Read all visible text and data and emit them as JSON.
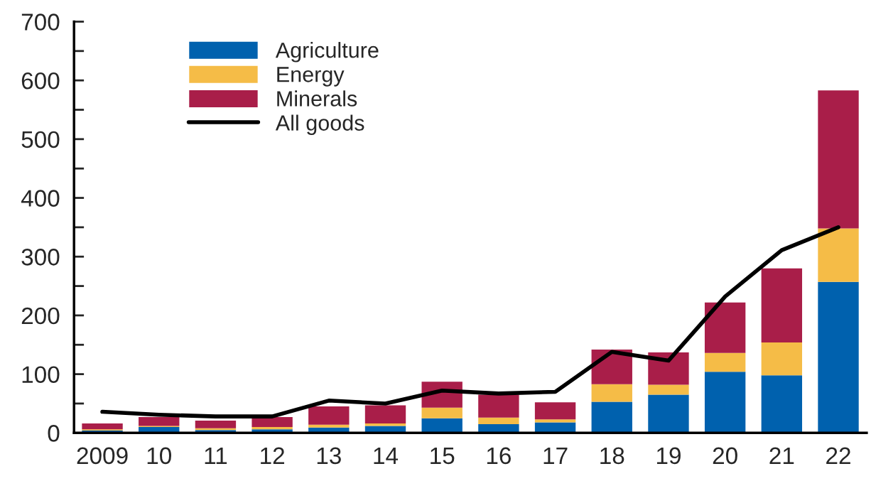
{
  "chart_data": {
    "type": "bar",
    "stacked": true,
    "categories": [
      "2009",
      "10",
      "11",
      "12",
      "13",
      "14",
      "15",
      "16",
      "17",
      "18",
      "19",
      "20",
      "21",
      "22"
    ],
    "series": [
      {
        "name": "Agriculture",
        "color": "#0061ae",
        "values": [
          4,
          10,
          5,
          6,
          9,
          12,
          25,
          15,
          18,
          53,
          65,
          104,
          98,
          257
        ]
      },
      {
        "name": "Energy",
        "color": "#f5bc47",
        "values": [
          2,
          2,
          3,
          4,
          5,
          4,
          18,
          11,
          5,
          30,
          17,
          32,
          56,
          91
        ]
      },
      {
        "name": "Minerals",
        "color": "#a91e49",
        "values": [
          10,
          15,
          13,
          17,
          31,
          31,
          44,
          39,
          29,
          59,
          55,
          86,
          126,
          235
        ]
      },
      {
        "name": "All goods",
        "type": "line",
        "color": "#000000",
        "values": [
          36,
          31,
          28,
          28,
          55,
          50,
          72,
          67,
          70,
          138,
          123,
          232,
          311,
          350
        ]
      }
    ],
    "ylim": [
      0,
      700
    ],
    "yticks": [
      0,
      {
        "value": 50,
        "label": null
      },
      100,
      {
        "value": 150,
        "label": null
      },
      200,
      {
        "value": 250,
        "label": null
      },
      300,
      {
        "value": 350,
        "label": null
      },
      400,
      {
        "value": 450,
        "label": null
      },
      500,
      {
        "value": 550,
        "label": null
      },
      600,
      {
        "value": 650,
        "label": null
      },
      700
    ],
    "grid": false,
    "legend": "top left",
    "marker": "none",
    "line_style": "solid"
  }
}
